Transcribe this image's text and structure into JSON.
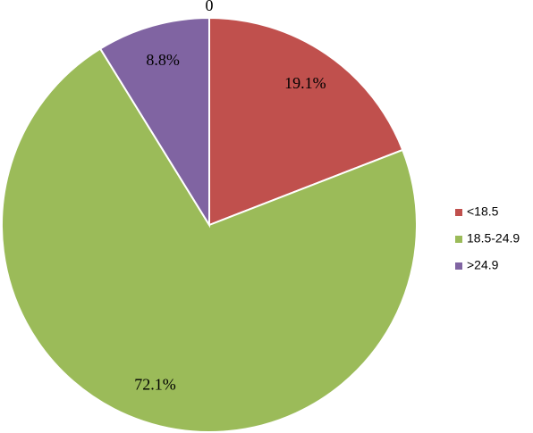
{
  "chart_data": {
    "type": "pie",
    "annotation": "0",
    "categories": [
      "<18.5",
      "18.5-24.9",
      ">24.9"
    ],
    "values": [
      19.1,
      72.1,
      8.8
    ],
    "value_labels": [
      "19.1%",
      "72.1%",
      "8.8%"
    ],
    "colors": [
      "#c0504d",
      "#9bbb59",
      "#8064a2"
    ],
    "legend": "right"
  }
}
